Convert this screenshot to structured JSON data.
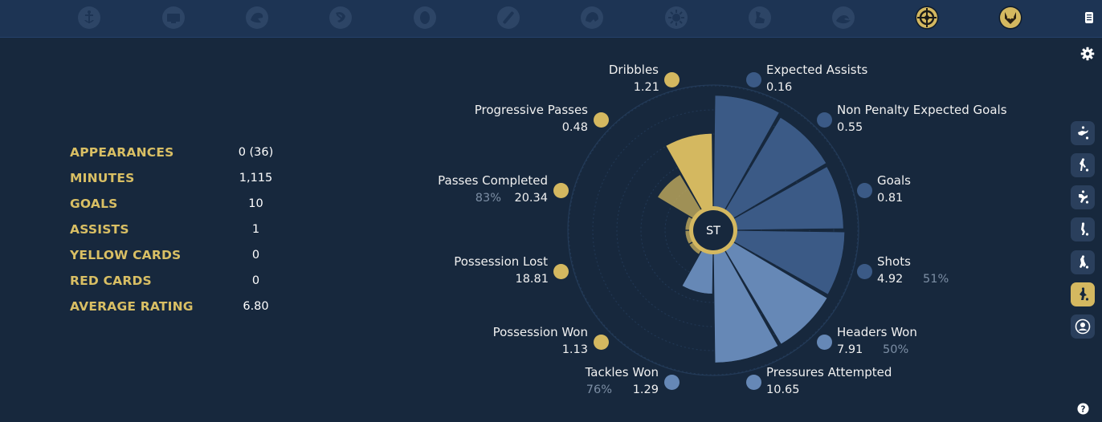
{
  "nav": {
    "icons": [
      "anchor-icon",
      "chalkboard-icon",
      "bird-crest-icon",
      "hammer-sickle-icon",
      "ring-icon",
      "pen-icon",
      "creature-crest-icon",
      "sun-crest-icon",
      "hoof-crest-icon",
      "wave-crest-icon",
      "crosshair-crest-icon",
      "fox-crest-icon"
    ],
    "active_icons": [
      "crosshair-crest-icon",
      "fox-crest-icon"
    ]
  },
  "stats": [
    {
      "label": "APPEARANCES",
      "value": "0 (36)"
    },
    {
      "label": "MINUTES",
      "value": "1,115"
    },
    {
      "label": "GOALS",
      "value": "10"
    },
    {
      "label": "ASSISTS",
      "value": "1"
    },
    {
      "label": "YELLOW CARDS",
      "value": "0"
    },
    {
      "label": "RED CARDS",
      "value": "0"
    },
    {
      "label": "AVERAGE RATING",
      "value": "6.80"
    }
  ],
  "chart_data": {
    "type": "radial-bar",
    "center_label": "ST",
    "colors": {
      "attacking": "#3b5a86",
      "defending": "#6688b6",
      "possession": "#d4b860"
    },
    "series": [
      {
        "name": "Expected Assists",
        "value": "0.16",
        "percentile": 0.94,
        "pct": "",
        "group": "attacking"
      },
      {
        "name": "Non Penalty Expected Goals",
        "value": "0.55",
        "percentile": 0.91,
        "pct": "",
        "group": "attacking"
      },
      {
        "name": "Goals",
        "value": "0.81",
        "percentile": 0.9,
        "pct": "",
        "group": "attacking"
      },
      {
        "name": "Shots",
        "value": "4.92",
        "percentile": 0.91,
        "pct": "51%",
        "group": "attacking"
      },
      {
        "name": "Headers Won",
        "value": "7.91",
        "percentile": 0.92,
        "pct": "50%",
        "group": "defending"
      },
      {
        "name": "Pressures Attempted",
        "value": "10.65",
        "percentile": 0.92,
        "pct": "",
        "group": "defending"
      },
      {
        "name": "Tackles Won",
        "value": "1.29",
        "percentile": 0.34,
        "pct": "76%",
        "group": "defending"
      },
      {
        "name": "Possession Won",
        "value": "1.13",
        "percentile": 0.04,
        "pct": "",
        "group": "possession"
      },
      {
        "name": "Possession Lost",
        "value": "18.81",
        "percentile": 0.0,
        "pct": "",
        "group": "possession"
      },
      {
        "name": "Passes Completed",
        "value": "20.34",
        "percentile": 0.04,
        "pct": "83%",
        "group": "possession"
      },
      {
        "name": "Progressive Passes",
        "value": "0.48",
        "percentile": 0.35,
        "pct": "",
        "group": "possession"
      },
      {
        "name": "Dribbles",
        "value": "1.21",
        "percentile": 0.62,
        "pct": "",
        "group": "possession"
      }
    ]
  },
  "side": {
    "buttons": [
      "goalkeeper-icon",
      "defender-icon",
      "wingback-icon",
      "midfielder-icon",
      "dribbler-icon",
      "striker-icon",
      "team-icon"
    ],
    "active": "striker-icon"
  }
}
